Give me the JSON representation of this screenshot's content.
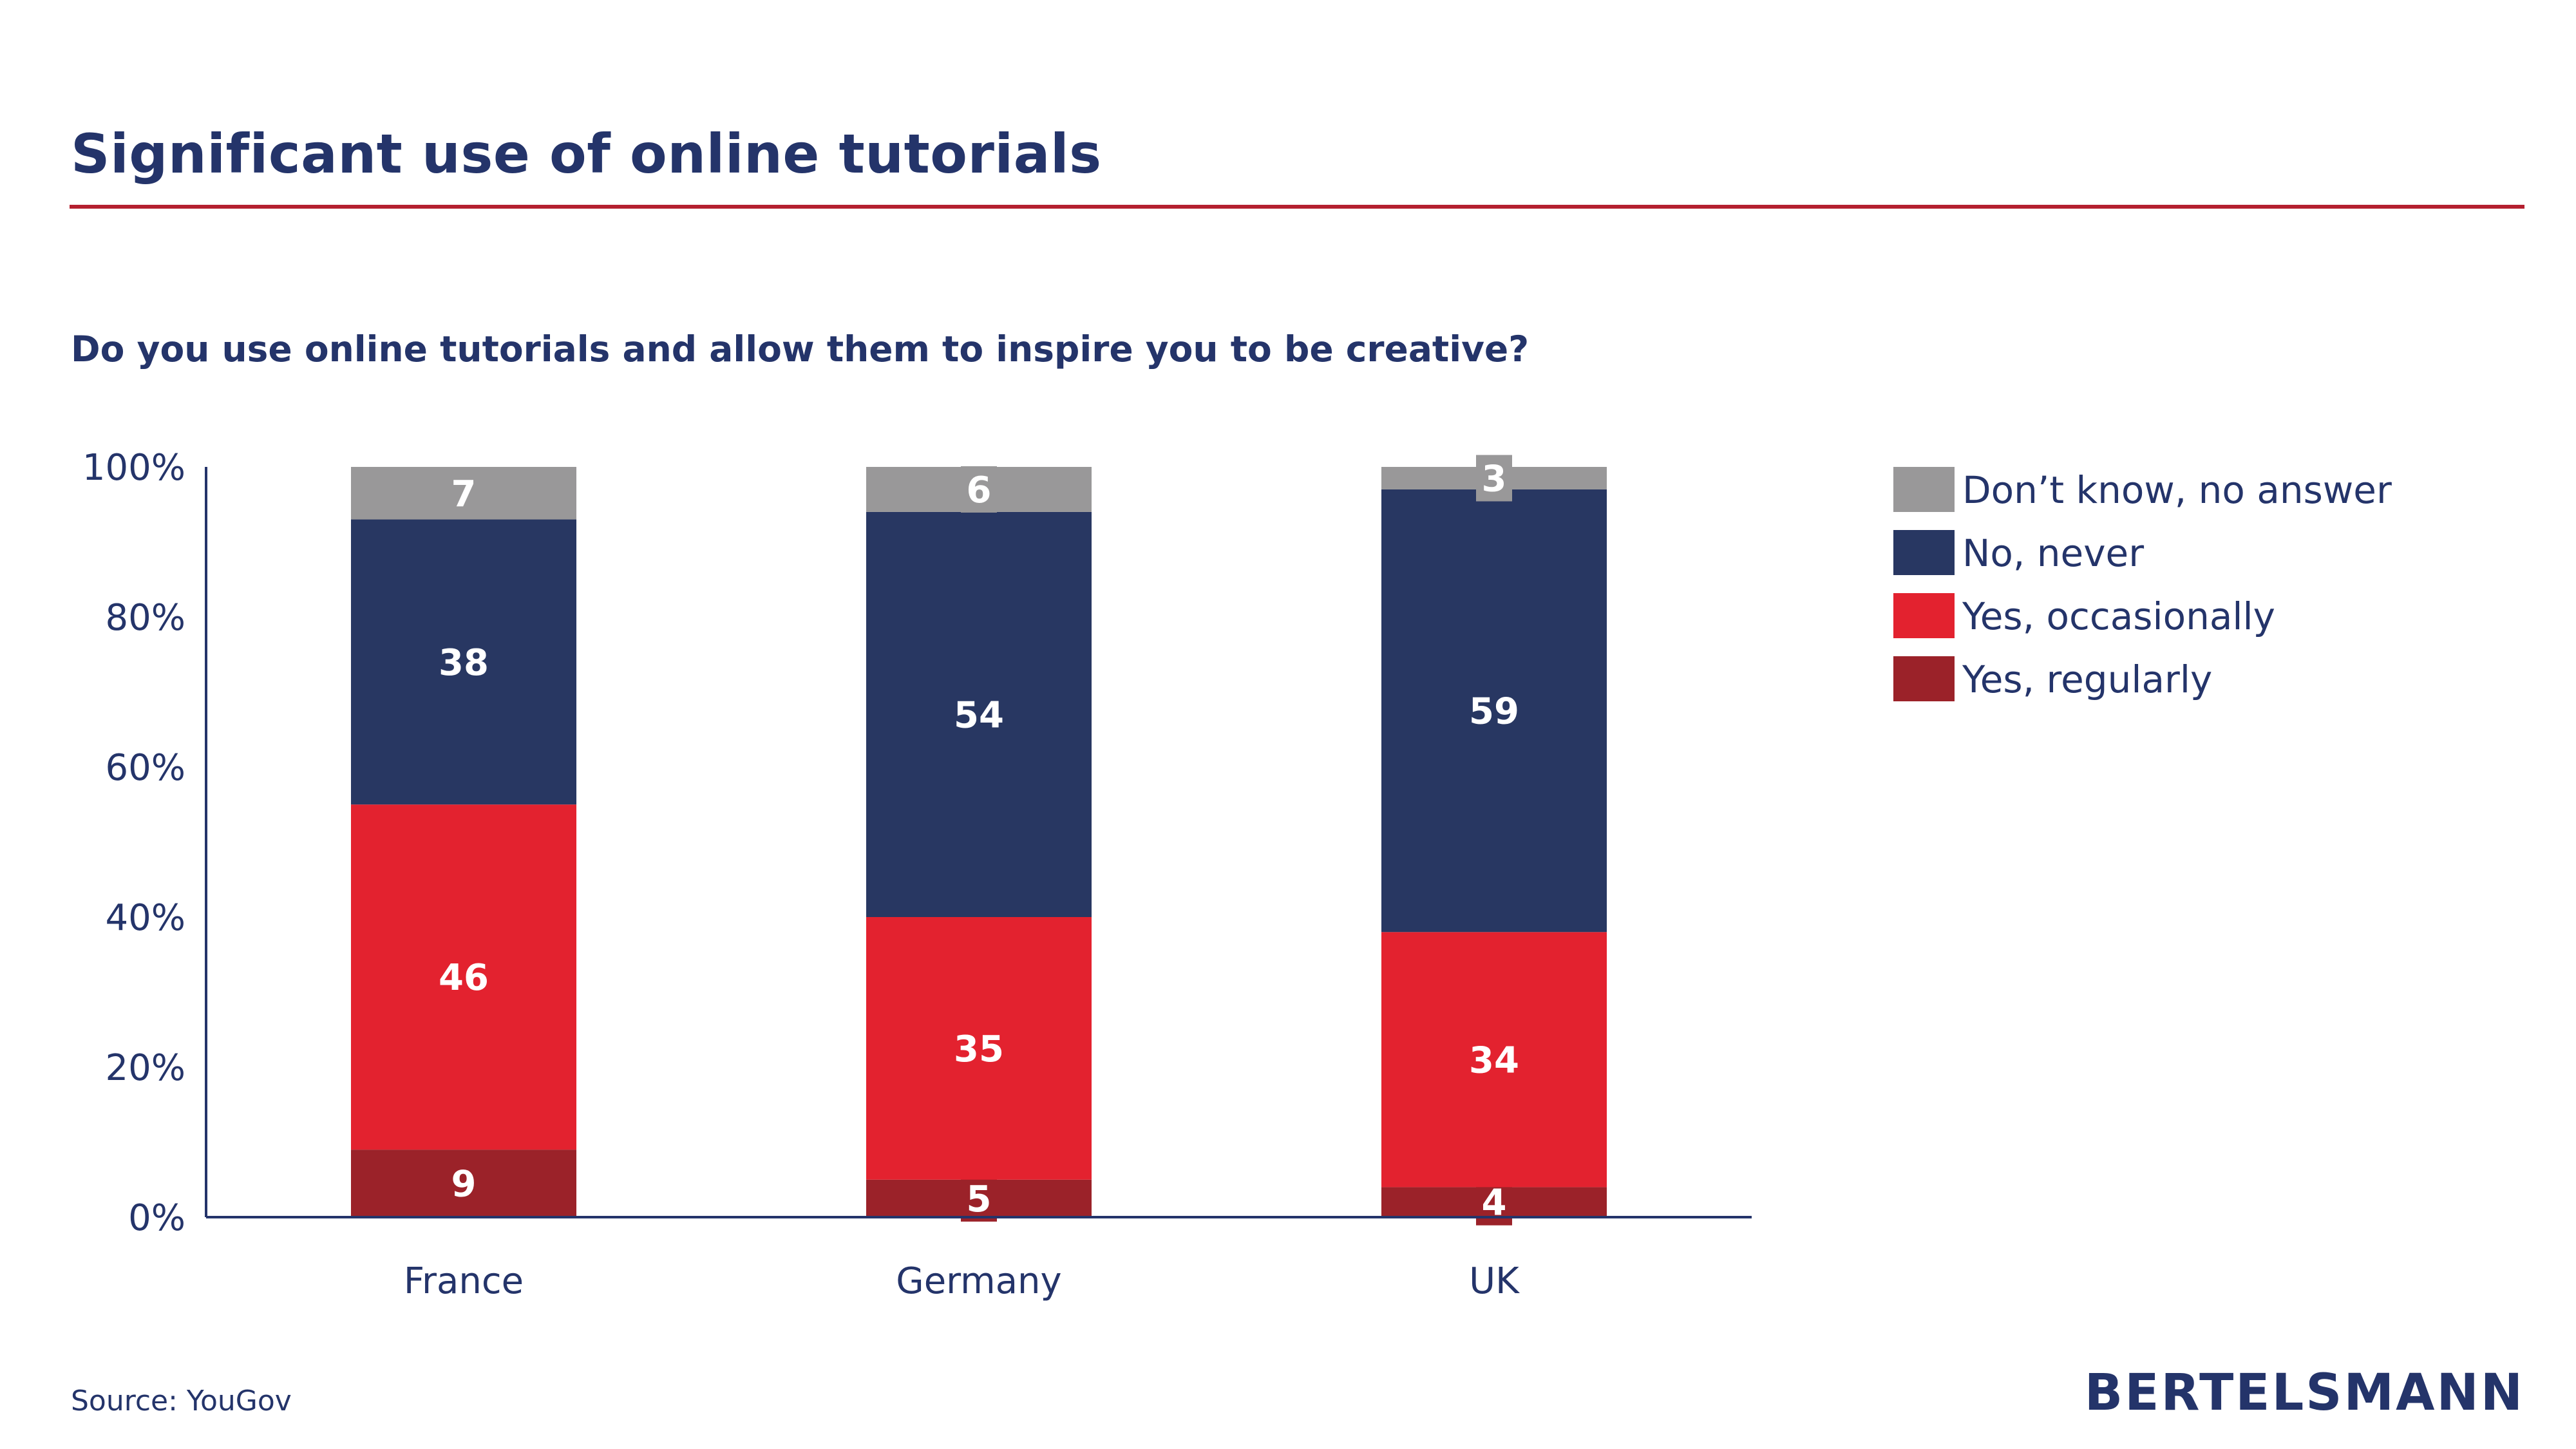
{
  "title": "Significant use of online tutorials",
  "source": "Source: YouGov",
  "logo_text": "BERTELSMANN",
  "colors": {
    "text": "#24346a",
    "rule": "#b41f2f"
  },
  "chart_data": {
    "type": "bar",
    "stacked": true,
    "title": "Do you use online tutorials and allow them to inspire you to be creative?",
    "xlabel": "",
    "ylabel": "",
    "ylim": [
      0,
      100
    ],
    "yticks": [
      "0%",
      "20%",
      "40%",
      "60%",
      "80%",
      "100%"
    ],
    "categories": [
      "France",
      "Germany",
      "UK"
    ],
    "legend_position": "right",
    "grid": false,
    "series": [
      {
        "name": "Yes, regularly",
        "color": "#9b2229",
        "values": [
          9,
          5,
          4
        ]
      },
      {
        "name": "Yes, occasionally",
        "color": "#e3222f",
        "values": [
          46,
          35,
          34
        ]
      },
      {
        "name": "No, never",
        "color": "#283762",
        "values": [
          38,
          54,
          59
        ]
      },
      {
        "name": "Don’t know, no answer",
        "color": "#999899",
        "values": [
          7,
          6,
          3
        ]
      }
    ]
  }
}
